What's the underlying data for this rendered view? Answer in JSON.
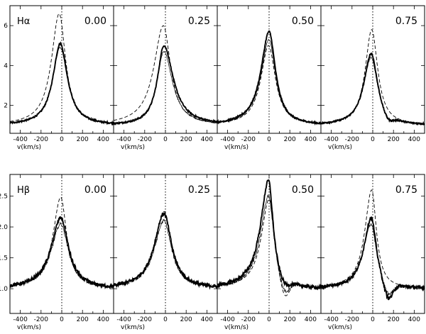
{
  "chart_data": [
    {
      "type": "line",
      "line_label": "Hα",
      "xlabel": "v(km/s)",
      "xlim": [
        -500,
        500
      ],
      "ylim": [
        0.6,
        7.0
      ],
      "x_ticks": [
        -400,
        -200,
        0,
        200,
        400
      ],
      "y_ticks": [
        2,
        4,
        6
      ],
      "series_styles": {
        "solid": "thick solid",
        "thin": "thin solid",
        "dashed": "dashed"
      },
      "panels": [
        {
          "phase": "0.00",
          "solid": {
            "center": -15,
            "peak": 5.1,
            "w_blue": 85,
            "w_red": 85,
            "cont": 1.0,
            "dip": 0
          },
          "thin": {
            "center": -15,
            "peak": 4.9,
            "w_blue": 90,
            "w_red": 85,
            "cont": 1.0,
            "dip": 0
          },
          "dashed": {
            "center": -25,
            "peak": 6.6,
            "w_blue": 90,
            "w_red": 75,
            "cont": 1.0,
            "dip": 0
          }
        },
        {
          "phase": "0.25",
          "solid": {
            "center": -15,
            "peak": 5.0,
            "w_blue": 75,
            "w_red": 110,
            "cont": 1.0,
            "dip": 0
          },
          "thin": {
            "center": -15,
            "peak": 4.7,
            "w_blue": 80,
            "w_red": 100,
            "cont": 1.0,
            "dip": 0
          },
          "dashed": {
            "center": -20,
            "peak": 6.0,
            "w_blue": 110,
            "w_red": 85,
            "cont": 1.0,
            "dip": 0
          }
        },
        {
          "phase": "0.50",
          "solid": {
            "center": 0,
            "peak": 5.7,
            "w_blue": 95,
            "w_red": 75,
            "cont": 1.0,
            "dip": 0
          },
          "thin": {
            "center": 0,
            "peak": 5.3,
            "w_blue": 95,
            "w_red": 75,
            "cont": 1.0,
            "dip": 0
          },
          "dashed": {
            "center": -5,
            "peak": 5.0,
            "w_blue": 90,
            "w_red": 80,
            "cont": 1.0,
            "dip": 0
          }
        },
        {
          "phase": "0.75",
          "solid": {
            "center": -15,
            "peak": 4.6,
            "w_blue": 85,
            "w_red": 75,
            "cont": 1.0,
            "dip": 0.3
          },
          "thin": {
            "center": -15,
            "peak": 4.4,
            "w_blue": 90,
            "w_red": 75,
            "cont": 1.0,
            "dip": 0.2
          },
          "dashed": {
            "center": -10,
            "peak": 5.8,
            "w_blue": 75,
            "w_red": 70,
            "cont": 1.0,
            "dip": 0
          }
        }
      ]
    },
    {
      "type": "line",
      "line_label": "Hβ",
      "xlabel": "v(km/s)",
      "xlim": [
        -500,
        500
      ],
      "ylim": [
        0.6,
        2.85
      ],
      "x_ticks": [
        -400,
        -200,
        0,
        200,
        400
      ],
      "y_ticks": [
        1.0,
        1.5,
        2.0,
        2.5
      ],
      "panels": [
        {
          "phase": "0.00",
          "solid": {
            "center": -10,
            "peak": 2.15,
            "w_blue": 110,
            "w_red": 90,
            "cont": 1.0,
            "dip": 0
          },
          "thin": {
            "center": -10,
            "peak": 2.05,
            "w_blue": 110,
            "w_red": 90,
            "cont": 1.0,
            "dip": 0
          },
          "dashed": {
            "center": -10,
            "peak": 2.48,
            "w_blue": 90,
            "w_red": 70,
            "cont": 1.0,
            "dip": 0
          }
        },
        {
          "phase": "0.25",
          "solid": {
            "center": -15,
            "peak": 2.22,
            "w_blue": 110,
            "w_red": 90,
            "cont": 1.0,
            "dip": 0
          },
          "thin": {
            "center": -15,
            "peak": 2.1,
            "w_blue": 110,
            "w_red": 90,
            "cont": 1.0,
            "dip": 0
          },
          "dashed": {
            "center": -10,
            "peak": 2.25,
            "w_blue": 110,
            "w_red": 80,
            "cont": 1.0,
            "dip": 0
          }
        },
        {
          "phase": "0.50",
          "solid": {
            "center": -5,
            "peak": 2.75,
            "w_blue": 95,
            "w_red": 55,
            "cont": 1.0,
            "dip": 0.1
          },
          "thin": {
            "center": -5,
            "peak": 2.5,
            "w_blue": 95,
            "w_red": 60,
            "cont": 1.0,
            "dip": 0.22
          },
          "dashed": {
            "center": 0,
            "peak": 2.45,
            "w_blue": 90,
            "w_red": 60,
            "cont": 1.0,
            "dip": 0.3
          }
        },
        {
          "phase": "0.75",
          "solid": {
            "center": -15,
            "peak": 2.15,
            "w_blue": 85,
            "w_red": 60,
            "cont": 1.0,
            "dip": 0.28
          },
          "thin": {
            "center": -15,
            "peak": 2.05,
            "w_blue": 90,
            "w_red": 60,
            "cont": 1.0,
            "dip": 0.2
          },
          "dashed": {
            "center": -10,
            "peak": 2.6,
            "w_blue": 80,
            "w_red": 55,
            "cont": 1.0,
            "dip": 0
          }
        }
      ]
    }
  ]
}
